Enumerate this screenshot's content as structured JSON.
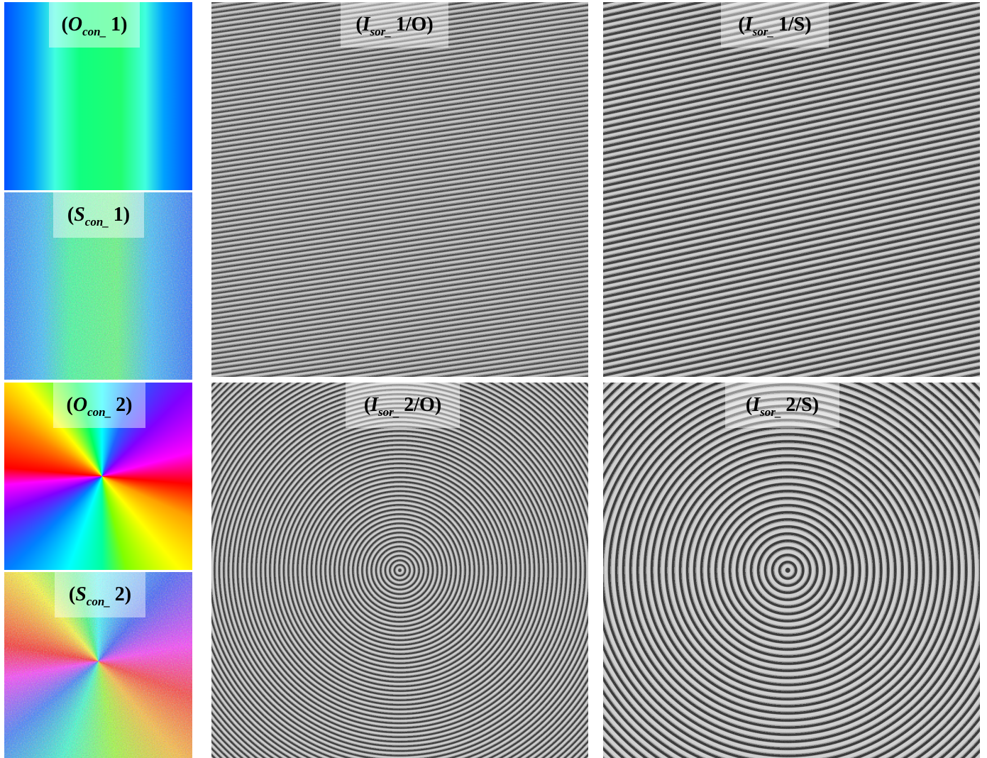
{
  "panels": [
    {
      "open": "(",
      "symbol": "O",
      "subscript": "con_",
      "suffix": "1)"
    },
    {
      "open": "(",
      "symbol": "S",
      "subscript": "con_",
      "suffix": "1)"
    },
    {
      "open": "(",
      "symbol": "O",
      "subscript": "con_",
      "suffix": "2)"
    },
    {
      "open": "(",
      "symbol": "S",
      "subscript": "con_",
      "suffix": "2)"
    },
    {
      "open": "(",
      "symbol": "I",
      "subscript": "sor_",
      "suffix": "1/O)"
    },
    {
      "open": "(",
      "symbol": "I",
      "subscript": "sor_",
      "suffix": "1/S)"
    },
    {
      "open": "(",
      "symbol": "I",
      "subscript": "sor_",
      "suffix": "2/O)"
    },
    {
      "open": "(",
      "symbol": "I",
      "subscript": "sor_",
      "suffix": "2/S)"
    }
  ]
}
